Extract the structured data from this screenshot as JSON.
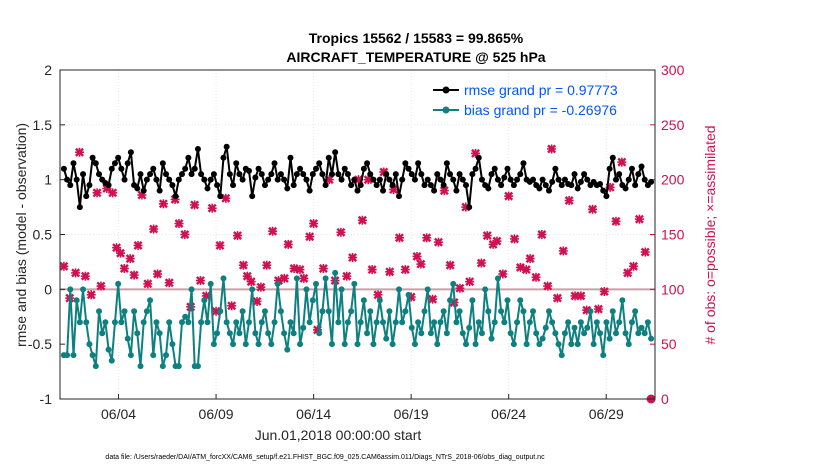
{
  "chart_data": {
    "type": "line",
    "title_line1": "Tropics 15562 / 15583 = 99.865%",
    "title_line2": "AIRCRAFT_TEMPERATURE @ 525 hPa",
    "xlabel": "Jun.01,2018 00:00:00 start",
    "ylabel_left": "rmse and bias (model - observation)",
    "ylabel_right": "# of obs: o=possible; ×=assimilated",
    "ylim_left": [
      -1,
      2
    ],
    "ylim_right": [
      0,
      300
    ],
    "x_range_days": [
      0,
      30.5
    ],
    "left_ticks": [
      "-1",
      "-0.5",
      "0",
      "0.5",
      "1",
      "1.5",
      "2"
    ],
    "right_ticks": [
      "0",
      "50",
      "100",
      "150",
      "200",
      "250",
      "300"
    ],
    "x_ticks": [
      {
        "day": 3,
        "label": "06/04"
      },
      {
        "day": 8,
        "label": "06/09"
      },
      {
        "day": 13,
        "label": "06/14"
      },
      {
        "day": 18,
        "label": "06/19"
      },
      {
        "day": 23,
        "label": "06/24"
      },
      {
        "day": 28,
        "label": "06/29"
      }
    ],
    "colors": {
      "rmse": "#000000",
      "bias": "#0e8080",
      "obs": "#d01050",
      "zero_line": "#c8a0a8",
      "legend_text": "#0055ff"
    },
    "series": [
      {
        "name": "rmse",
        "legend": "rmse grand pr = 0.97773",
        "axis": "left",
        "values": [
          1.1,
          1.0,
          0.95,
          1.15,
          1.0,
          0.75,
          1.05,
          0.85,
          0.95,
          1.2,
          1.15,
          1.05,
          1.0,
          0.97,
          0.95,
          1.1,
          1.15,
          1.2,
          1.1,
          1.0,
          1.15,
          1.25,
          0.95,
          0.92,
          1.05,
          0.9,
          1.0,
          1.05,
          1.1,
          1.0,
          0.9,
          1.15,
          1.05,
          1.0,
          0.95,
          0.85,
          1.0,
          1.05,
          1.1,
          1.2,
          1.05,
          1.1,
          1.28,
          1.05,
          1.0,
          0.92,
          1.0,
          1.05,
          0.95,
          0.85,
          1.2,
          1.3,
          1.05,
          0.95,
          1.15,
          1.05,
          1.0,
          1.1,
          1.08,
          0.85,
          1.02,
          1.1,
          1.05,
          0.95,
          1.0,
          1.05,
          1.15,
          1.0,
          1.05,
          1.0,
          0.92,
          1.2,
          0.95,
          1.05,
          1.1,
          1.05,
          1.0,
          0.9,
          1.05,
          1.1,
          1.15,
          1.05,
          0.95,
          1.2,
          1.05,
          1.25,
          1.05,
          1.0,
          1.1,
          1.05,
          0.95,
          1.0,
          0.9,
          0.95,
          1.1,
          1.15,
          1.05,
          1.0,
          0.95,
          1.0,
          0.9,
          1.05,
          1.0,
          0.95,
          1.05,
          0.85,
          1.0,
          1.15,
          1.1,
          1.05,
          1.0,
          1.15,
          1.05,
          0.95,
          1.0,
          0.95,
          0.9,
          1.05,
          1.0,
          0.95,
          1.15,
          1.05,
          1.0,
          0.9,
          1.05,
          1.0,
          0.95,
          0.75,
          1.05,
          1.1,
          1.2,
          1.0,
          0.95,
          0.92,
          1.05,
          1.1,
          1.0,
          0.95,
          1.02,
          1.1,
          1.0,
          0.95,
          1.0,
          1.05,
          1.15,
          1.0,
          0.98,
          1.0,
          0.95,
          0.92,
          1.0,
          0.95,
          0.9,
          0.98,
          1.1,
          1.0,
          0.95,
          1.0,
          0.96,
          0.95,
          1.05,
          0.92,
          0.98,
          1.05,
          1.0,
          0.95,
          0.98,
          0.95,
          0.96,
          0.9,
          0.85,
          1.1,
          1.2,
          1.0,
          1.05,
          0.95,
          0.92,
          1.0,
          1.1,
          0.95,
          1.05,
          1.12,
          1.0,
          0.95,
          0.98
        ]
      },
      {
        "name": "bias",
        "legend": "bias grand pr = -0.26976",
        "axis": "left",
        "values": [
          -0.6,
          -0.6,
          0.0,
          -0.6,
          -0.1,
          -0.3,
          0.0,
          -0.3,
          -0.5,
          -0.6,
          -0.7,
          -0.2,
          -0.4,
          -0.3,
          -0.55,
          -0.65,
          -0.3,
          0.05,
          -0.3,
          -0.2,
          -0.45,
          -0.6,
          -0.2,
          -0.4,
          -0.7,
          -0.3,
          -0.2,
          -0.1,
          -0.6,
          -0.3,
          -0.4,
          -0.7,
          -0.6,
          -0.3,
          -0.5,
          -0.7,
          -0.7,
          -0.3,
          -0.25,
          -0.3,
          0.0,
          -0.7,
          -0.7,
          -0.3,
          -0.1,
          -0.3,
          0.05,
          -0.5,
          -0.4,
          -0.2,
          0.1,
          -0.3,
          -0.4,
          -0.5,
          -0.3,
          -0.4,
          -0.2,
          -0.5,
          -0.3,
          0.0,
          -0.4,
          -0.5,
          -0.3,
          -0.2,
          -0.4,
          -0.5,
          -0.3,
          0.05,
          -0.2,
          -0.4,
          -0.55,
          -0.3,
          -0.4,
          0.1,
          -0.5,
          -0.35,
          0.0,
          -0.3,
          -0.1,
          0.05,
          -0.4,
          -0.2,
          0.1,
          -0.2,
          -0.5,
          0.15,
          -0.3,
          0.0,
          -0.5,
          -0.3,
          -0.2,
          0.05,
          -0.5,
          -0.3,
          -0.1,
          -0.4,
          -0.2,
          -0.5,
          -0.3,
          -0.1,
          -0.3,
          -0.45,
          -0.2,
          -0.5,
          -0.3,
          0.0,
          -0.3,
          -0.2,
          -0.05,
          -0.35,
          -0.5,
          -0.3,
          -0.4,
          -0.2,
          0.0,
          -0.4,
          -0.3,
          -0.5,
          -0.3,
          -0.2,
          -0.4,
          -0.1,
          0.05,
          -0.3,
          -0.2,
          -0.4,
          -0.5,
          -0.35,
          -0.1,
          -0.5,
          -0.3,
          -0.4,
          0.0,
          -0.2,
          -0.45,
          -0.3,
          0.1,
          -0.2,
          -0.3,
          -0.1,
          -0.4,
          -0.5,
          -0.3,
          -0.1,
          -0.2,
          -0.5,
          -0.3,
          -0.2,
          -0.4,
          -0.5,
          -0.45,
          -0.35,
          -0.2,
          -0.3,
          -0.4,
          -0.5,
          -0.6,
          -0.4,
          -0.3,
          -0.5,
          -0.35,
          -0.5,
          -0.3,
          -0.4,
          -0.35,
          -0.2,
          -0.5,
          -0.3,
          -0.4,
          -0.6,
          -0.3,
          -0.45,
          -0.2,
          -0.4,
          -0.3,
          -0.1,
          -0.4,
          -0.5,
          -0.3,
          -0.2,
          -0.4,
          -0.35,
          -0.4,
          -0.3,
          -0.45
        ]
      },
      {
        "name": "obs_assimilated",
        "axis": "right",
        "marker": "x",
        "points": [
          [
            0.2,
            121
          ],
          [
            0.5,
            92
          ],
          [
            0.8,
            115
          ],
          [
            1.0,
            225
          ],
          [
            1.3,
            112
          ],
          [
            1.6,
            95
          ],
          [
            1.9,
            188
          ],
          [
            2.1,
            103
          ],
          [
            2.4,
            192
          ],
          [
            2.7,
            188
          ],
          [
            2.9,
            138
          ],
          [
            3.1,
            133
          ],
          [
            3.3,
            119
          ],
          [
            3.6,
            128
          ],
          [
            3.8,
            113
          ],
          [
            4.0,
            140
          ],
          [
            4.2,
            186
          ],
          [
            4.5,
            105
          ],
          [
            4.8,
            155
          ],
          [
            5.0,
            114
          ],
          [
            5.3,
            178
          ],
          [
            5.6,
            106
          ],
          [
            5.9,
            182
          ],
          [
            6.1,
            160
          ],
          [
            6.4,
            150
          ],
          [
            6.7,
            84
          ],
          [
            6.9,
            177
          ],
          [
            7.2,
            108
          ],
          [
            7.5,
            94
          ],
          [
            7.8,
            174
          ],
          [
            8.0,
            80
          ],
          [
            8.2,
            140
          ],
          [
            8.5,
            183
          ],
          [
            8.8,
            85
          ],
          [
            9.1,
            149
          ],
          [
            9.4,
            122
          ],
          [
            9.6,
            112
          ],
          [
            9.8,
            107
          ],
          [
            10.1,
            89
          ],
          [
            10.3,
            102
          ],
          [
            10.6,
            122
          ],
          [
            10.9,
            153
          ],
          [
            11.2,
            108
          ],
          [
            11.5,
            110
          ],
          [
            11.7,
            141
          ],
          [
            12.0,
            119
          ],
          [
            12.3,
            118
          ],
          [
            12.5,
            110
          ],
          [
            12.8,
            148
          ],
          [
            13.0,
            160
          ],
          [
            13.2,
            63
          ],
          [
            13.5,
            119
          ],
          [
            13.8,
            200
          ],
          [
            14.1,
            108
          ],
          [
            14.4,
            152
          ],
          [
            14.7,
            112
          ],
          [
            15.0,
            129
          ],
          [
            15.3,
            200
          ],
          [
            15.5,
            163
          ],
          [
            15.8,
            200
          ],
          [
            16.0,
            118
          ],
          [
            16.3,
            95
          ],
          [
            16.6,
            207
          ],
          [
            16.9,
            116
          ],
          [
            17.1,
            191
          ],
          [
            17.4,
            147
          ],
          [
            17.7,
            118
          ],
          [
            18.0,
            93
          ],
          [
            18.3,
            130
          ],
          [
            18.5,
            123
          ],
          [
            18.8,
            147
          ],
          [
            19.1,
            91
          ],
          [
            19.4,
            143
          ],
          [
            19.7,
            190
          ],
          [
            20.0,
            122
          ],
          [
            20.2,
            88
          ],
          [
            20.5,
            101
          ],
          [
            20.8,
            175
          ],
          [
            21.0,
            107
          ],
          [
            21.3,
            224
          ],
          [
            21.6,
            124
          ],
          [
            21.9,
            149
          ],
          [
            22.2,
            141
          ],
          [
            22.4,
            144
          ],
          [
            22.7,
            114
          ],
          [
            23.0,
            185
          ],
          [
            23.3,
            146
          ],
          [
            23.6,
            120
          ],
          [
            23.9,
            118
          ],
          [
            24.1,
            128
          ],
          [
            24.4,
            111
          ],
          [
            24.7,
            150
          ],
          [
            25.0,
            103
          ],
          [
            25.2,
            228
          ],
          [
            25.5,
            92
          ],
          [
            25.8,
            135
          ],
          [
            26.1,
            181
          ],
          [
            26.4,
            94
          ],
          [
            26.7,
            94
          ],
          [
            27.0,
            81
          ],
          [
            27.3,
            173
          ],
          [
            27.6,
            82
          ],
          [
            27.9,
            98
          ],
          [
            28.2,
            193
          ],
          [
            28.5,
            162
          ],
          [
            28.8,
            216
          ],
          [
            29.1,
            115
          ],
          [
            29.4,
            121
          ],
          [
            29.7,
            164
          ],
          [
            30.0,
            134
          ]
        ]
      },
      {
        "name": "obs_possible",
        "axis": "right",
        "marker": "o",
        "points": [
          [
            30.3,
            0
          ]
        ]
      }
    ]
  },
  "footer": "data file: /Users/raeder/DAI/ATM_forcXX/CAM6_setup/f.e21.FHIST_BGC.f09_025.CAM6assim.011/Diags_NTrS_2018-06/obs_diag_output.nc"
}
